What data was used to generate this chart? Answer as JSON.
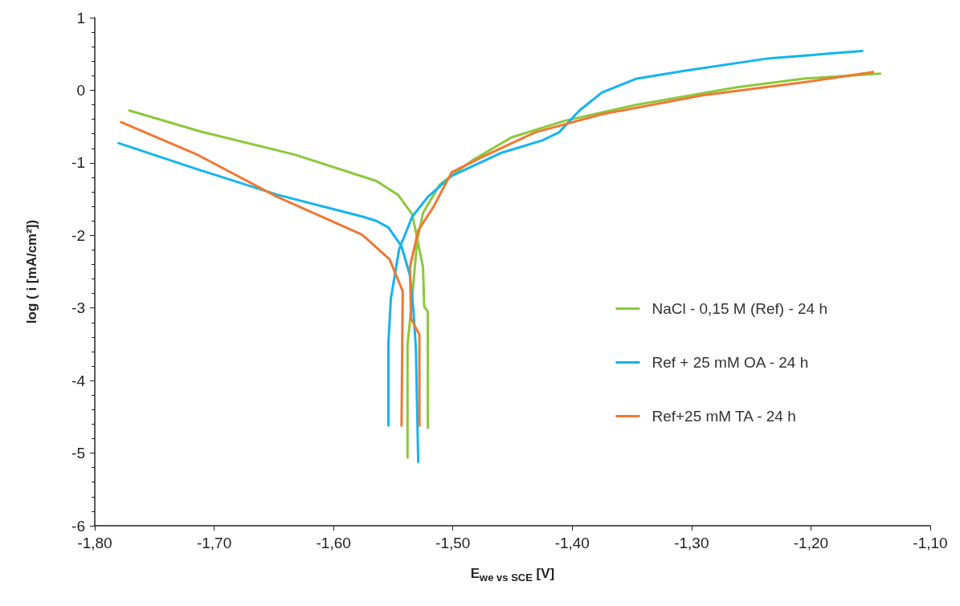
{
  "chart_data": {
    "type": "line",
    "xlabel": "E$_{we vs SCE}$ [V]",
    "ylabel": "log ( i [mA/cm²])",
    "xlim": [
      -1.8,
      -1.1
    ],
    "ylim": [
      -6,
      1
    ],
    "xticks": [
      {
        "value": -1.8,
        "label": "-1,80"
      },
      {
        "value": -1.7,
        "label": "-1,70"
      },
      {
        "value": -1.6,
        "label": "-1,60"
      },
      {
        "value": -1.5,
        "label": "-1,50"
      },
      {
        "value": -1.4,
        "label": "-1,40"
      },
      {
        "value": -1.3,
        "label": "-1,30"
      },
      {
        "value": -1.2,
        "label": "-1,20"
      },
      {
        "value": -1.1,
        "label": "-1,10"
      }
    ],
    "yticks": [
      -6,
      -5,
      -4,
      -3,
      -2,
      -1,
      0,
      1
    ],
    "grid": false,
    "legend": "right",
    "marker": "none",
    "line_style": "solid",
    "series": [
      {
        "name": "NaCl - 0,15 M (Ref) - 24 h",
        "color": "#8cc83c",
        "x": [
          -1.771,
          -1.711,
          -1.632,
          -1.564,
          -1.546,
          -1.534,
          -1.525,
          -1.524,
          -1.521,
          -1.521,
          null,
          -1.538,
          -1.538,
          -1.538,
          -1.534,
          -1.53,
          -1.525,
          -1.511,
          -1.484,
          -1.451,
          -1.406,
          -1.346,
          -1.262,
          -1.206,
          -1.142
        ],
        "values": [
          -0.28,
          -0.57,
          -0.89,
          -1.25,
          -1.44,
          -1.71,
          -2.44,
          -2.98,
          -3.05,
          -4.65,
          null,
          -5.06,
          -4.14,
          -3.51,
          -2.85,
          -2.08,
          -1.69,
          -1.3,
          -0.97,
          -0.65,
          -0.42,
          -0.2,
          0.04,
          0.16,
          0.23
        ]
      },
      {
        "name": "Ref + 25 mM OA - 24 h",
        "color": "#14b4f0",
        "x": [
          -1.78,
          -1.71,
          -1.647,
          -1.576,
          -1.564,
          -1.554,
          -1.543,
          -1.536,
          -1.533,
          -1.531,
          -1.529,
          null,
          -1.554,
          -1.554,
          -1.552,
          -1.545,
          -1.534,
          -1.521,
          -1.501,
          -1.459,
          -1.425,
          -1.411,
          -1.394,
          -1.375,
          -1.346,
          -1.305,
          -1.235,
          -1.157
        ],
        "values": [
          -0.73,
          -1.11,
          -1.44,
          -1.74,
          -1.8,
          -1.89,
          -2.15,
          -2.55,
          -3.04,
          -3.55,
          -5.12,
          null,
          -4.62,
          -3.48,
          -2.88,
          -2.19,
          -1.74,
          -1.47,
          -1.18,
          -0.86,
          -0.69,
          -0.58,
          -0.28,
          -0.03,
          0.16,
          0.27,
          0.44,
          0.54
        ]
      },
      {
        "name": "Ref+25 mM TA - 24 h",
        "color": "#f07832",
        "x": [
          -1.778,
          -1.715,
          -1.647,
          -1.576,
          -1.553,
          -1.542,
          -1.543,
          null,
          -1.528,
          -1.528,
          -1.535,
          -1.536,
          -1.529,
          -1.516,
          -1.501,
          -1.473,
          -1.431,
          -1.375,
          -1.291,
          -1.206,
          -1.148
        ],
        "values": [
          -0.44,
          -0.88,
          -1.47,
          -1.99,
          -2.33,
          -2.77,
          -4.62,
          null,
          -4.62,
          -3.37,
          -3.15,
          -2.44,
          -1.93,
          -1.6,
          -1.13,
          -0.9,
          -0.58,
          -0.33,
          -0.07,
          0.11,
          0.25
        ]
      }
    ]
  }
}
